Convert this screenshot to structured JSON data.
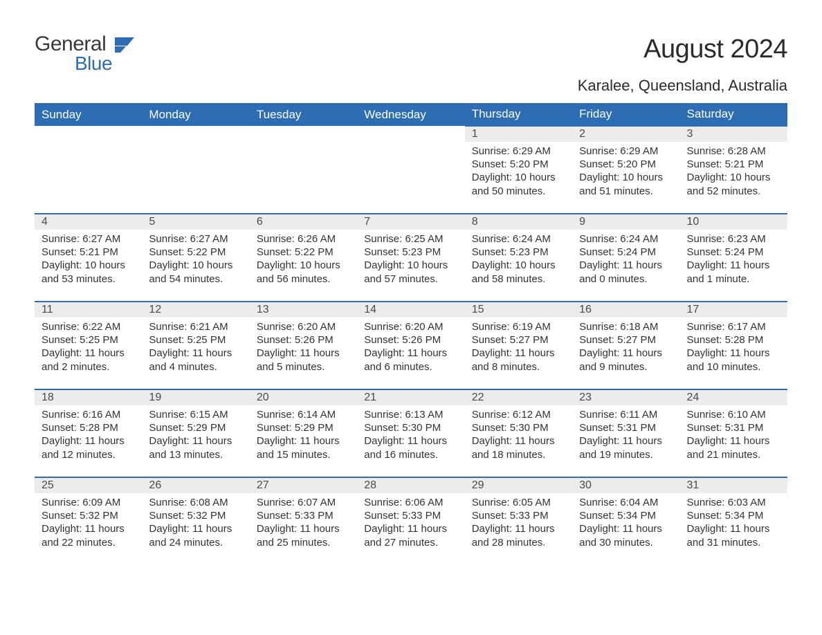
{
  "brand": {
    "general": "General",
    "blue": "Blue"
  },
  "title": "August 2024",
  "location": "Karalee, Queensland, Australia",
  "colors": {
    "header_bg": "#2d6db3",
    "header_text": "#ffffff",
    "daynum_bg": "#ececec",
    "row_border": "#2d6db3",
    "body_text": "#333333",
    "logo_gray": "#3a3a3a",
    "logo_blue": "#2d6db3",
    "page_bg": "#ffffff"
  },
  "typography": {
    "title_fontsize": 38,
    "location_fontsize": 22,
    "header_fontsize": 17,
    "daynum_fontsize": 16,
    "body_fontsize": 15,
    "font_family": "Arial"
  },
  "weekdays": [
    "Sunday",
    "Monday",
    "Tuesday",
    "Wednesday",
    "Thursday",
    "Friday",
    "Saturday"
  ],
  "calendar": {
    "leading_blanks": 4,
    "weeks": [
      [
        null,
        null,
        null,
        null,
        {
          "n": "1",
          "sr": "Sunrise: 6:29 AM",
          "ss": "Sunset: 5:20 PM",
          "dl": "Daylight: 10 hours and 50 minutes."
        },
        {
          "n": "2",
          "sr": "Sunrise: 6:29 AM",
          "ss": "Sunset: 5:20 PM",
          "dl": "Daylight: 10 hours and 51 minutes."
        },
        {
          "n": "3",
          "sr": "Sunrise: 6:28 AM",
          "ss": "Sunset: 5:21 PM",
          "dl": "Daylight: 10 hours and 52 minutes."
        }
      ],
      [
        {
          "n": "4",
          "sr": "Sunrise: 6:27 AM",
          "ss": "Sunset: 5:21 PM",
          "dl": "Daylight: 10 hours and 53 minutes."
        },
        {
          "n": "5",
          "sr": "Sunrise: 6:27 AM",
          "ss": "Sunset: 5:22 PM",
          "dl": "Daylight: 10 hours and 54 minutes."
        },
        {
          "n": "6",
          "sr": "Sunrise: 6:26 AM",
          "ss": "Sunset: 5:22 PM",
          "dl": "Daylight: 10 hours and 56 minutes."
        },
        {
          "n": "7",
          "sr": "Sunrise: 6:25 AM",
          "ss": "Sunset: 5:23 PM",
          "dl": "Daylight: 10 hours and 57 minutes."
        },
        {
          "n": "8",
          "sr": "Sunrise: 6:24 AM",
          "ss": "Sunset: 5:23 PM",
          "dl": "Daylight: 10 hours and 58 minutes."
        },
        {
          "n": "9",
          "sr": "Sunrise: 6:24 AM",
          "ss": "Sunset: 5:24 PM",
          "dl": "Daylight: 11 hours and 0 minutes."
        },
        {
          "n": "10",
          "sr": "Sunrise: 6:23 AM",
          "ss": "Sunset: 5:24 PM",
          "dl": "Daylight: 11 hours and 1 minute."
        }
      ],
      [
        {
          "n": "11",
          "sr": "Sunrise: 6:22 AM",
          "ss": "Sunset: 5:25 PM",
          "dl": "Daylight: 11 hours and 2 minutes."
        },
        {
          "n": "12",
          "sr": "Sunrise: 6:21 AM",
          "ss": "Sunset: 5:25 PM",
          "dl": "Daylight: 11 hours and 4 minutes."
        },
        {
          "n": "13",
          "sr": "Sunrise: 6:20 AM",
          "ss": "Sunset: 5:26 PM",
          "dl": "Daylight: 11 hours and 5 minutes."
        },
        {
          "n": "14",
          "sr": "Sunrise: 6:20 AM",
          "ss": "Sunset: 5:26 PM",
          "dl": "Daylight: 11 hours and 6 minutes."
        },
        {
          "n": "15",
          "sr": "Sunrise: 6:19 AM",
          "ss": "Sunset: 5:27 PM",
          "dl": "Daylight: 11 hours and 8 minutes."
        },
        {
          "n": "16",
          "sr": "Sunrise: 6:18 AM",
          "ss": "Sunset: 5:27 PM",
          "dl": "Daylight: 11 hours and 9 minutes."
        },
        {
          "n": "17",
          "sr": "Sunrise: 6:17 AM",
          "ss": "Sunset: 5:28 PM",
          "dl": "Daylight: 11 hours and 10 minutes."
        }
      ],
      [
        {
          "n": "18",
          "sr": "Sunrise: 6:16 AM",
          "ss": "Sunset: 5:28 PM",
          "dl": "Daylight: 11 hours and 12 minutes."
        },
        {
          "n": "19",
          "sr": "Sunrise: 6:15 AM",
          "ss": "Sunset: 5:29 PM",
          "dl": "Daylight: 11 hours and 13 minutes."
        },
        {
          "n": "20",
          "sr": "Sunrise: 6:14 AM",
          "ss": "Sunset: 5:29 PM",
          "dl": "Daylight: 11 hours and 15 minutes."
        },
        {
          "n": "21",
          "sr": "Sunrise: 6:13 AM",
          "ss": "Sunset: 5:30 PM",
          "dl": "Daylight: 11 hours and 16 minutes."
        },
        {
          "n": "22",
          "sr": "Sunrise: 6:12 AM",
          "ss": "Sunset: 5:30 PM",
          "dl": "Daylight: 11 hours and 18 minutes."
        },
        {
          "n": "23",
          "sr": "Sunrise: 6:11 AM",
          "ss": "Sunset: 5:31 PM",
          "dl": "Daylight: 11 hours and 19 minutes."
        },
        {
          "n": "24",
          "sr": "Sunrise: 6:10 AM",
          "ss": "Sunset: 5:31 PM",
          "dl": "Daylight: 11 hours and 21 minutes."
        }
      ],
      [
        {
          "n": "25",
          "sr": "Sunrise: 6:09 AM",
          "ss": "Sunset: 5:32 PM",
          "dl": "Daylight: 11 hours and 22 minutes."
        },
        {
          "n": "26",
          "sr": "Sunrise: 6:08 AM",
          "ss": "Sunset: 5:32 PM",
          "dl": "Daylight: 11 hours and 24 minutes."
        },
        {
          "n": "27",
          "sr": "Sunrise: 6:07 AM",
          "ss": "Sunset: 5:33 PM",
          "dl": "Daylight: 11 hours and 25 minutes."
        },
        {
          "n": "28",
          "sr": "Sunrise: 6:06 AM",
          "ss": "Sunset: 5:33 PM",
          "dl": "Daylight: 11 hours and 27 minutes."
        },
        {
          "n": "29",
          "sr": "Sunrise: 6:05 AM",
          "ss": "Sunset: 5:33 PM",
          "dl": "Daylight: 11 hours and 28 minutes."
        },
        {
          "n": "30",
          "sr": "Sunrise: 6:04 AM",
          "ss": "Sunset: 5:34 PM",
          "dl": "Daylight: 11 hours and 30 minutes."
        },
        {
          "n": "31",
          "sr": "Sunrise: 6:03 AM",
          "ss": "Sunset: 5:34 PM",
          "dl": "Daylight: 11 hours and 31 minutes."
        }
      ]
    ]
  }
}
